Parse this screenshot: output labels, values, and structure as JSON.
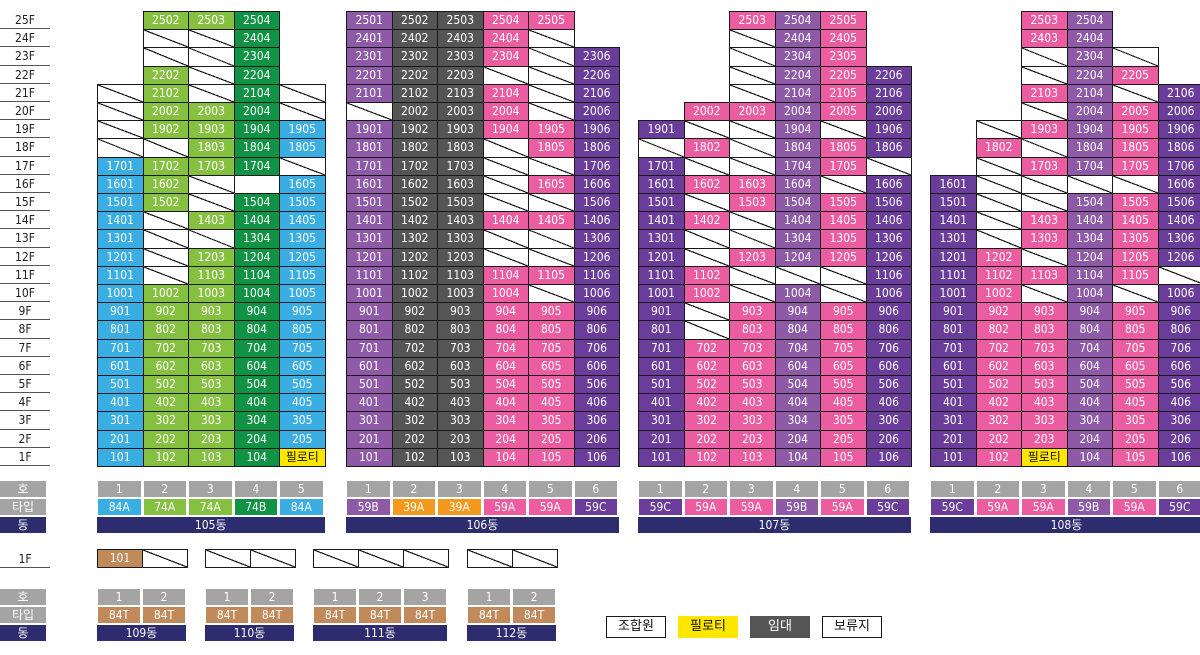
{
  "floor_labels": [
    "25F",
    "24F",
    "23F",
    "22F",
    "21F",
    "20F",
    "19F",
    "18F",
    "17F",
    "16F",
    "15F",
    "14F",
    "13F",
    "12F",
    "11F",
    "10F",
    "9F",
    "8F",
    "7F",
    "6F",
    "5F",
    "4F",
    "3F",
    "2F",
    "1F"
  ],
  "row_labels": {
    "ho": "호",
    "type": "타입",
    "dong": "동"
  },
  "pilotis_label": "필로티",
  "colors": {
    "blue": "#3aaee3",
    "lgreen": "#86c041",
    "dgreen": "#119346",
    "purple": "#8e5aa8",
    "gray": "#555555",
    "pink": "#ec5ca0",
    "violet": "#6a3d9a",
    "orange": "#f39a1e",
    "brown": "#c18a5a",
    "yellow": "#ffe600",
    "hdrgray": "#a4a4a4",
    "navy": "#2c2c6e"
  },
  "buildings": [
    {
      "dong": "105동",
      "columns": [
        {
          "ho": "1",
          "type": "84A",
          "type_color": "blue"
        },
        {
          "ho": "2",
          "type": "74A",
          "type_color": "lgreen"
        },
        {
          "ho": "3",
          "type": "74A",
          "type_color": "lgreen"
        },
        {
          "ho": "4",
          "type": "74B",
          "type_color": "dgreen"
        },
        {
          "ho": "5",
          "type": "84A",
          "type_color": "blue"
        }
      ],
      "grid": [
        [
          "",
          "l:2502",
          "l:2503",
          "d:2504",
          ""
        ],
        [
          "",
          "x",
          "x",
          "d:2404",
          ""
        ],
        [
          "",
          "x",
          "x",
          "d:2304",
          ""
        ],
        [
          "",
          "l:2202",
          "x",
          "d:2204",
          ""
        ],
        [
          "x",
          "l:2102",
          "x",
          "d:2104",
          "x"
        ],
        [
          "x",
          "l:2002",
          "l:2003",
          "d:2004",
          "x"
        ],
        [
          "x",
          "l:1902",
          "l:1903",
          "d:1904",
          "b:1905"
        ],
        [
          "x",
          "x",
          "l:1803",
          "d:1804",
          "b:1805"
        ],
        [
          "b:1701",
          "l:1702",
          "l:1703",
          "d:1704",
          "x"
        ],
        [
          "b:1601",
          "l:1602",
          "x",
          "w",
          "b:1605"
        ],
        [
          "b:1501",
          "l:1502",
          "x",
          "d:1504",
          "b:1505"
        ],
        [
          "b:1401",
          "x",
          "l:1403",
          "d:1404",
          "b:1405"
        ],
        [
          "b:1301",
          "x",
          "x",
          "d:1304",
          "b:1305"
        ],
        [
          "b:1201",
          "x",
          "l:1203",
          "d:1204",
          "b:1205"
        ],
        [
          "b:1101",
          "x",
          "l:1103",
          "d:1104",
          "b:1105"
        ],
        [
          "b:1001",
          "l:1002",
          "l:1003",
          "d:1004",
          "b:1005"
        ],
        [
          "b:901",
          "l:902",
          "l:903",
          "d:904",
          "b:905"
        ],
        [
          "b:801",
          "l:802",
          "l:803",
          "d:804",
          "b:805"
        ],
        [
          "b:701",
          "l:702",
          "l:703",
          "d:704",
          "b:705"
        ],
        [
          "b:601",
          "l:602",
          "l:603",
          "d:604",
          "b:605"
        ],
        [
          "b:501",
          "l:502",
          "l:503",
          "d:504",
          "b:505"
        ],
        [
          "b:401",
          "l:402",
          "l:403",
          "d:404",
          "b:405"
        ],
        [
          "b:301",
          "l:302",
          "l:303",
          "d:304",
          "b:305"
        ],
        [
          "b:201",
          "l:202",
          "l:203",
          "d:204",
          "b:205"
        ],
        [
          "b:101",
          "l:102",
          "l:103",
          "d:104",
          "y"
        ]
      ]
    },
    {
      "dong": "106동",
      "columns": [
        {
          "ho": "1",
          "type": "59B",
          "type_color": "purple"
        },
        {
          "ho": "2",
          "type": "39A",
          "type_color": "orange"
        },
        {
          "ho": "3",
          "type": "39A",
          "type_color": "orange"
        },
        {
          "ho": "4",
          "type": "59A",
          "type_color": "pink"
        },
        {
          "ho": "5",
          "type": "59A",
          "type_color": "pink"
        },
        {
          "ho": "6",
          "type": "59C",
          "type_color": "violet"
        }
      ],
      "grid": [
        [
          "u:2501",
          "g:2502",
          "g:2503",
          "p:2504",
          "p:2505",
          ""
        ],
        [
          "u:2401",
          "g:2402",
          "g:2403",
          "p:2404",
          "x",
          ""
        ],
        [
          "u:2301",
          "g:2302",
          "g:2303",
          "p:2304",
          "x",
          "v:2306"
        ],
        [
          "u:2201",
          "g:2202",
          "g:2203",
          "x",
          "x",
          "v:2206"
        ],
        [
          "u:2101",
          "g:2102",
          "g:2103",
          "p:2104",
          "x",
          "v:2106"
        ],
        [
          "x",
          "g:2002",
          "g:2003",
          "p:2004",
          "x",
          "v:2006"
        ],
        [
          "u:1901",
          "g:1902",
          "g:1903",
          "p:1904",
          "p:1905",
          "v:1906"
        ],
        [
          "u:1801",
          "g:1802",
          "g:1803",
          "x",
          "p:1805",
          "v:1806"
        ],
        [
          "u:1701",
          "g:1702",
          "g:1703",
          "x",
          "x",
          "v:1706"
        ],
        [
          "u:1601",
          "g:1602",
          "g:1603",
          "x",
          "p:1605",
          "v:1606"
        ],
        [
          "u:1501",
          "g:1502",
          "g:1503",
          "x",
          "x",
          "v:1506"
        ],
        [
          "u:1401",
          "g:1402",
          "g:1403",
          "p:1404",
          "p:1405",
          "v:1406"
        ],
        [
          "u:1301",
          "g:1302",
          "g:1303",
          "x",
          "x",
          "v:1306"
        ],
        [
          "u:1201",
          "g:1202",
          "g:1203",
          "x",
          "x",
          "v:1206"
        ],
        [
          "u:1101",
          "g:1102",
          "g:1103",
          "p:1104",
          "p:1105",
          "v:1106"
        ],
        [
          "u:1001",
          "g:1002",
          "g:1003",
          "p:1004",
          "x",
          "v:1006"
        ],
        [
          "u:901",
          "g:902",
          "g:903",
          "p:904",
          "p:905",
          "v:906"
        ],
        [
          "u:801",
          "g:802",
          "g:803",
          "p:804",
          "p:805",
          "v:806"
        ],
        [
          "u:701",
          "g:702",
          "g:703",
          "p:704",
          "p:705",
          "v:706"
        ],
        [
          "u:601",
          "g:602",
          "g:603",
          "p:604",
          "p:605",
          "v:606"
        ],
        [
          "u:501",
          "g:502",
          "g:503",
          "p:504",
          "p:505",
          "v:506"
        ],
        [
          "u:401",
          "g:402",
          "g:403",
          "p:404",
          "p:405",
          "v:406"
        ],
        [
          "u:301",
          "g:302",
          "g:303",
          "p:304",
          "p:305",
          "v:306"
        ],
        [
          "u:201",
          "g:202",
          "g:203",
          "p:204",
          "p:205",
          "v:206"
        ],
        [
          "u:101",
          "g:102",
          "g:103",
          "p:104",
          "p:105",
          "v:106"
        ]
      ]
    },
    {
      "dong": "107동",
      "columns": [
        {
          "ho": "1",
          "type": "59C",
          "type_color": "violet"
        },
        {
          "ho": "2",
          "type": "59A",
          "type_color": "pink"
        },
        {
          "ho": "3",
          "type": "59A",
          "type_color": "pink"
        },
        {
          "ho": "4",
          "type": "59B",
          "type_color": "purple"
        },
        {
          "ho": "5",
          "type": "59A",
          "type_color": "pink"
        },
        {
          "ho": "6",
          "type": "59C",
          "type_color": "violet"
        }
      ],
      "grid": [
        [
          "",
          "",
          "p:2503",
          "u:2504",
          "p:2505",
          ""
        ],
        [
          "",
          "",
          "x",
          "u:2404",
          "p:2405",
          ""
        ],
        [
          "",
          "",
          "x",
          "u:2304",
          "p:2305",
          ""
        ],
        [
          "",
          "",
          "x",
          "u:2204",
          "p:2205",
          "v:2206"
        ],
        [
          "",
          "",
          "x",
          "u:2104",
          "p:2105",
          "v:2106"
        ],
        [
          "",
          "p:2002",
          "p:2003",
          "u:2004",
          "p:2005",
          "v:2006"
        ],
        [
          "v:1901",
          "x",
          "x",
          "u:1904",
          "x",
          "v:1906"
        ],
        [
          "x",
          "p:1802",
          "x",
          "u:1804",
          "p:1805",
          "v:1806"
        ],
        [
          "v:1701",
          "x",
          "x",
          "u:1704",
          "p:1705",
          "x"
        ],
        [
          "v:1601",
          "p:1602",
          "p:1603",
          "u:1604",
          "x",
          "v:1606"
        ],
        [
          "v:1501",
          "x",
          "p:1503",
          "u:1504",
          "p:1505",
          "v:1506"
        ],
        [
          "v:1401",
          "p:1402",
          "x",
          "u:1404",
          "p:1405",
          "v:1406"
        ],
        [
          "v:1301",
          "x",
          "x",
          "u:1304",
          "p:1305",
          "v:1306"
        ],
        [
          "v:1201",
          "x",
          "p:1203",
          "u:1204",
          "p:1205",
          "v:1206"
        ],
        [
          "v:1101",
          "p:1102",
          "x",
          "x",
          "x",
          "v:1106"
        ],
        [
          "v:1001",
          "p:1002",
          "x",
          "u:1004",
          "x",
          "v:1006"
        ],
        [
          "v:901",
          "x",
          "p:903",
          "u:904",
          "p:905",
          "v:906"
        ],
        [
          "v:801",
          "x",
          "p:803",
          "u:804",
          "p:805",
          "v:806"
        ],
        [
          "v:701",
          "p:702",
          "p:703",
          "u:704",
          "p:705",
          "v:706"
        ],
        [
          "v:601",
          "p:602",
          "p:603",
          "u:604",
          "p:605",
          "v:606"
        ],
        [
          "v:501",
          "p:502",
          "p:503",
          "u:504",
          "p:505",
          "v:506"
        ],
        [
          "v:401",
          "p:402",
          "p:403",
          "u:404",
          "p:405",
          "v:406"
        ],
        [
          "v:301",
          "p:302",
          "p:303",
          "u:304",
          "p:305",
          "v:306"
        ],
        [
          "v:201",
          "p:202",
          "p:203",
          "u:204",
          "p:205",
          "v:206"
        ],
        [
          "v:101",
          "p:102",
          "p:103",
          "u:104",
          "p:105",
          "v:106"
        ]
      ]
    },
    {
      "dong": "108동",
      "columns": [
        {
          "ho": "1",
          "type": "59C",
          "type_color": "violet"
        },
        {
          "ho": "2",
          "type": "59A",
          "type_color": "pink"
        },
        {
          "ho": "3",
          "type": "59A",
          "type_color": "pink"
        },
        {
          "ho": "4",
          "type": "59B",
          "type_color": "purple"
        },
        {
          "ho": "5",
          "type": "59A",
          "type_color": "pink"
        },
        {
          "ho": "6",
          "type": "59C",
          "type_color": "violet"
        }
      ],
      "grid": [
        [
          "",
          "",
          "p:2503",
          "u:2504",
          "",
          ""
        ],
        [
          "",
          "",
          "p:2403",
          "u:2404",
          "",
          ""
        ],
        [
          "",
          "",
          "x",
          "u:2304",
          "x",
          ""
        ],
        [
          "",
          "",
          "x",
          "u:2204",
          "p:2205",
          ""
        ],
        [
          "",
          "",
          "p:2103",
          "u:2104",
          "x",
          "v:2106"
        ],
        [
          "",
          "",
          "x",
          "u:2004",
          "p:2005",
          "v:2006"
        ],
        [
          "",
          "x",
          "p:1903",
          "u:1904",
          "p:1905",
          "v:1906"
        ],
        [
          "",
          "p:1802",
          "x",
          "u:1804",
          "p:1805",
          "v:1806"
        ],
        [
          "",
          "x",
          "p:1703",
          "u:1704",
          "p:1705",
          "v:1706"
        ],
        [
          "v:1601",
          "x",
          "x",
          "x",
          "x",
          "v:1606"
        ],
        [
          "v:1501",
          "x",
          "x",
          "u:1504",
          "p:1505",
          "v:1506"
        ],
        [
          "v:1401",
          "x",
          "p:1403",
          "u:1404",
          "p:1405",
          "v:1406"
        ],
        [
          "v:1301",
          "x",
          "p:1303",
          "u:1304",
          "p:1305",
          "v:1306"
        ],
        [
          "v:1201",
          "p:1202",
          "x",
          "u:1204",
          "p:1205",
          "v:1206"
        ],
        [
          "v:1101",
          "p:1102",
          "p:1103",
          "u:1104",
          "p:1105",
          "x"
        ],
        [
          "v:1001",
          "p:1002",
          "x",
          "u:1004",
          "x",
          "v:1006"
        ],
        [
          "v:901",
          "p:902",
          "p:903",
          "u:904",
          "p:905",
          "v:906"
        ],
        [
          "v:801",
          "p:802",
          "p:803",
          "u:804",
          "p:805",
          "v:806"
        ],
        [
          "v:701",
          "p:702",
          "p:703",
          "u:704",
          "p:705",
          "v:706"
        ],
        [
          "v:601",
          "p:602",
          "p:603",
          "u:604",
          "p:605",
          "v:606"
        ],
        [
          "v:501",
          "p:502",
          "p:503",
          "u:504",
          "p:505",
          "v:506"
        ],
        [
          "v:401",
          "p:402",
          "p:403",
          "u:404",
          "p:405",
          "v:406"
        ],
        [
          "v:301",
          "p:302",
          "p:303",
          "u:304",
          "p:305",
          "v:306"
        ],
        [
          "v:201",
          "p:202",
          "p:203",
          "u:204",
          "p:205",
          "v:206"
        ],
        [
          "v:101",
          "p:102",
          "y",
          "u:104",
          "p:105",
          "v:106"
        ]
      ]
    }
  ],
  "small_buildings": [
    {
      "dong": "109동",
      "first_floor": [
        "r:101",
        "x"
      ],
      "columns": [
        {
          "ho": "1",
          "type": "84T"
        },
        {
          "ho": "2",
          "type": "84T"
        }
      ]
    },
    {
      "dong": "110동",
      "first_floor": [
        "x",
        "x"
      ],
      "columns": [
        {
          "ho": "1",
          "type": "84T"
        },
        {
          "ho": "2",
          "type": "84T"
        }
      ]
    },
    {
      "dong": "111동",
      "first_floor": [
        "x",
        "x",
        "x"
      ],
      "columns": [
        {
          "ho": "1",
          "type": "84T"
        },
        {
          "ho": "2",
          "type": "84T"
        },
        {
          "ho": "3",
          "type": "84T"
        }
      ]
    },
    {
      "dong": "112동",
      "first_floor": [
        "x",
        "x"
      ],
      "columns": [
        {
          "ho": "1",
          "type": "84T"
        },
        {
          "ho": "2",
          "type": "84T"
        }
      ]
    }
  ],
  "small_floor_label": "1F",
  "legend": [
    {
      "label": "조합원",
      "style": "white"
    },
    {
      "label": "필로티",
      "style": "yellow"
    },
    {
      "label": "임대",
      "style": "gray"
    },
    {
      "label": "보류지",
      "style": "pending"
    }
  ]
}
